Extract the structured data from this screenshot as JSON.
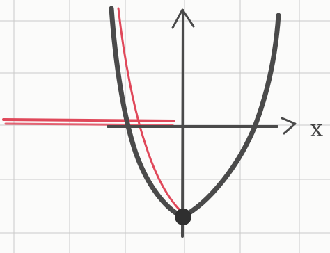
{
  "figure": {
    "axis_label_x": "x",
    "colors": {
      "paper": "#fbfbfa",
      "grid": "#c9c9c9",
      "pencil": "#4a4a4a",
      "red_pen": "#e0485a"
    }
  }
}
